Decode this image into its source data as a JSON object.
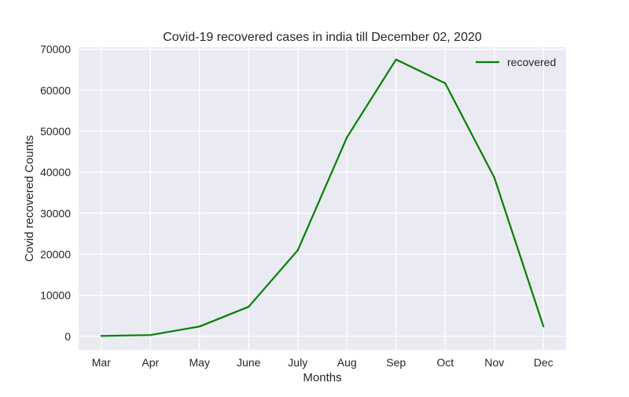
{
  "chart_data": {
    "type": "line",
    "title": "Covid-19 recovered cases in india till December 02, 2020",
    "xlabel": "Months",
    "ylabel": "Covid  recovered  Counts",
    "categories": [
      "Mar",
      "Apr",
      "May",
      "June",
      "July",
      "Aug",
      "Sep",
      "Oct",
      "Nov",
      "Dec"
    ],
    "series": [
      {
        "name": "recovered",
        "color": "#008000",
        "values": [
          100,
          300,
          2400,
          7200,
          21000,
          48500,
          67500,
          61700,
          38700,
          2400
        ]
      }
    ],
    "ylim": [
      -3300,
      70500
    ],
    "yticks": [
      0,
      10000,
      20000,
      30000,
      40000,
      50000,
      60000,
      70000
    ],
    "ytick_labels": [
      "0",
      "10000",
      "20000",
      "30000",
      "40000",
      "50000",
      "60000",
      "70000"
    ],
    "grid": true,
    "legend_position": "top-right",
    "style": {
      "background": "#EAEAF2",
      "grid_color": "#FFFFFF"
    }
  }
}
